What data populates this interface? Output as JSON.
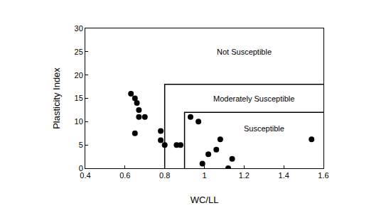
{
  "chart_data": {
    "type": "scatter",
    "x_label": "WC/LL",
    "y_label": "Plasticity Index",
    "x": [
      0.63,
      0.65,
      0.66,
      0.67,
      0.67,
      0.7,
      0.65,
      0.78,
      0.78,
      0.8,
      0.86,
      0.88,
      0.93,
      0.97,
      0.99,
      1.02,
      1.06,
      1.08,
      1.12,
      1.14,
      1.54
    ],
    "values": [
      16,
      15,
      14,
      12.5,
      11,
      11,
      7.5,
      8,
      6,
      5,
      5,
      5,
      11,
      10,
      1,
      3,
      4,
      6.2,
      0,
      2,
      6.2
    ],
    "color": "#000000",
    "marker": "circle",
    "boundaries": [
      {
        "x": [
          0.8,
          0.8,
          1.6
        ],
        "values": [
          0,
          18,
          18
        ],
        "color": "#000000",
        "line_style": "solid"
      },
      {
        "x": [
          0.9,
          0.9,
          1.6
        ],
        "values": [
          0,
          12,
          12
        ],
        "color": "#000000",
        "line_style": "solid"
      }
    ],
    "annotations": [
      {
        "text": "Not Susceptible",
        "x": 1.2,
        "y": 25
      },
      {
        "text": "Moderately Susceptible",
        "x": 1.25,
        "y": 15
      },
      {
        "text": "Susceptible",
        "x": 1.3,
        "y": 8.5
      }
    ],
    "xlim": [
      0.4,
      1.6
    ],
    "xticks": [
      0.4,
      0.6,
      0.8,
      {
        "value": 1.0,
        "label": "1"
      },
      1.2,
      1.4,
      1.6
    ],
    "ylim": [
      0,
      30
    ],
    "yticks": [
      0,
      5,
      10,
      15,
      20,
      25,
      30
    ],
    "grid": false
  }
}
